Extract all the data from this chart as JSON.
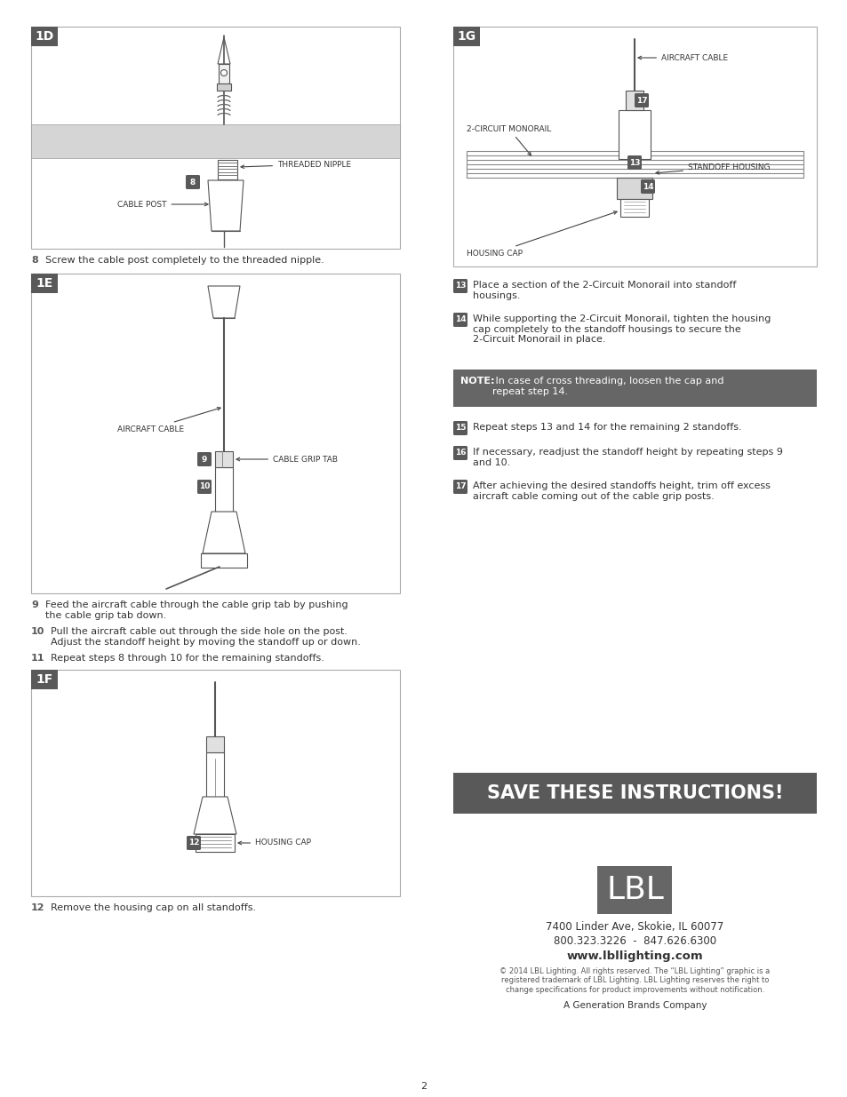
{
  "page_bg": "#ffffff",
  "dark_gray": "#595959",
  "medium_gray": "#888888",
  "light_gray": "#d0d0d0",
  "diagram_border": "#aaaaaa",
  "note_bg": "#666666",
  "save_bg": "#595959",
  "lbl_bg": "#666666",
  "text_color": "#333333",
  "step_badge_color": "#595959",
  "step8_text": "Screw the cable post completely to the threaded nipple.",
  "step9_text": "Feed the aircraft cable through the cable grip tab by pushing\nthe cable grip tab down.",
  "step10_text": "Pull the aircraft cable out through the side hole on the post.\nAdjust the standoff height by moving the standoff up or down.",
  "step11_text": "Repeat steps 8 through 10 for the remaining standoffs.",
  "step12_text": "Remove the housing cap on all standoffs.",
  "step13_text": "Place a section of the 2-Circuit Monorail into standoff\nhousings.",
  "step14_text": "While supporting the 2-Circuit Monorail, tighten the housing\ncap completely to the standoff housings to secure the\n2-Circuit Monorail in place.",
  "note_label": "NOTE:",
  "note_body": " In case of cross threading, loosen the cap and\nrepeat step 14.",
  "step15_text": "Repeat steps 13 and 14 for the remaining 2 standoffs.",
  "step16_text": "If necessary, readjust the standoff height by repeating steps 9\nand 10.",
  "step17_text": "After achieving the desired standoffs height, trim off excess\naircraft cable coming out of the cable grip posts.",
  "save_text": "SAVE THESE INSTRUCTIONS!",
  "addr1": "7400 Linder Ave, Skokie, IL 60077",
  "addr2": "800.323.3226  -  847.626.6300",
  "website": "www.lbllighting.com",
  "copyright": "© 2014 LBL Lighting. All rights reserved. The “LBL Lighting” graphic is a\nregistered trademark of LBL Lighting. LBL Lighting reserves the right to\nchange specifications for product improvements without notification.",
  "generation": "A Generation Brands Company",
  "page_num": "2"
}
